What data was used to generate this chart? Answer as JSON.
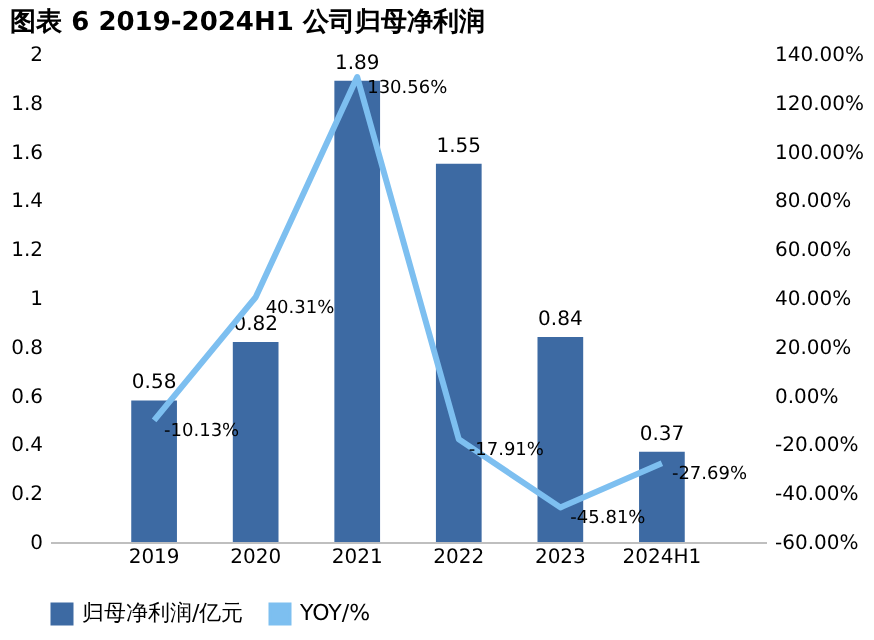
{
  "chart_data": {
    "type": "bar",
    "title": "图表 6 2019-2024H1 公司归母净利润",
    "categories": [
      "2019",
      "2020",
      "2021",
      "2022",
      "2023",
      "2024H1"
    ],
    "series": [
      {
        "name": "归母净利润/亿元",
        "color": "#3d6aa3",
        "values": [
          0.58,
          0.82,
          1.89,
          1.55,
          0.84,
          0.37
        ]
      },
      {
        "name": "YOY/%",
        "type": "line",
        "axis": "y2",
        "color": "#7dbff0",
        "values": [
          -10.13,
          40.31,
          130.56,
          -17.91,
          -45.81,
          -27.69
        ],
        "value_labels": [
          "-10.13%",
          "40.31%",
          "130.56%",
          "-17.91%",
          "-45.81%",
          "-27.69%"
        ]
      }
    ],
    "data_labels": true,
    "ylim": [
      0,
      2
    ],
    "yticks": [
      0,
      0.2,
      0.4,
      0.6,
      0.8,
      1,
      1.2,
      1.4,
      1.6,
      1.8,
      2
    ],
    "y2lim": [
      -60,
      140
    ],
    "y2ticks": [
      {
        "value": -60,
        "label": "-60.00%"
      },
      {
        "value": -40,
        "label": "-40.00%"
      },
      {
        "value": -20,
        "label": "-20.00%"
      },
      {
        "value": 0,
        "label": "0.00%"
      },
      {
        "value": 20,
        "label": "20.00%"
      },
      {
        "value": 40,
        "label": "40.00%"
      },
      {
        "value": 60,
        "label": "60.00%"
      },
      {
        "value": 80,
        "label": "80.00%"
      },
      {
        "value": 100,
        "label": "100.00%"
      },
      {
        "value": 120,
        "label": "120.00%"
      },
      {
        "value": 140,
        "label": "140.00%"
      }
    ],
    "grid": false,
    "legend": "bottom"
  }
}
